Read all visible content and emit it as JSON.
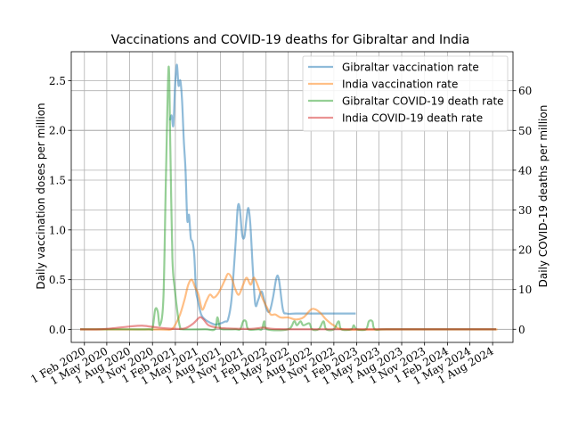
{
  "chart_data": {
    "type": "line",
    "title": "Vaccinations and COVID-19 deaths for Gibraltar and India",
    "ylabel": "Daily vaccination doses per million",
    "y2label": "Daily COVID-19 deaths per million",
    "xlabel": "",
    "xlim": [
      "2019-12-10",
      "2024-10-22"
    ],
    "ylim": [
      -0.13,
      2.79
    ],
    "y2lim": [
      -3.3,
      69.8
    ],
    "grid": true,
    "legend_position": "top-right",
    "x_ticks": [
      "2020-02-01",
      "2020-05-01",
      "2020-08-01",
      "2020-11-01",
      "2021-02-01",
      "2021-05-01",
      "2021-08-01",
      "2021-11-01",
      "2022-02-01",
      "2022-05-01",
      "2022-08-01",
      "2022-11-01",
      "2023-02-01",
      "2023-05-01",
      "2023-08-01",
      "2023-11-01",
      "2024-02-01",
      "2024-05-01",
      "2024-08-01"
    ],
    "x_tick_labels": [
      "1 Feb 2020",
      "1 May 2020",
      "1 Aug 2020",
      "1 Nov 2020",
      "1 Feb 2021",
      "1 May 2021",
      "1 Aug 2021",
      "1 Nov 2021",
      "1 Feb 2022",
      "1 May 2022",
      "1 Aug 2022",
      "1 Nov 2022",
      "1 Feb 2023",
      "1 May 2023",
      "1 Aug 2023",
      "1 Nov 2023",
      "1 Feb 2024",
      "1 May 2024",
      "1 Aug 2024"
    ],
    "y_ticks": [
      0.0,
      0.5,
      1.0,
      1.5,
      2.0,
      2.5
    ],
    "y_tick_labels": [
      "0.0",
      "0.5",
      "1.0",
      "1.5",
      "2.0",
      "2.5"
    ],
    "y2_ticks": [
      0,
      10,
      20,
      30,
      40,
      50,
      60
    ],
    "y2_tick_labels": [
      "0",
      "10",
      "20",
      "30",
      "40",
      "50",
      "60"
    ],
    "series": [
      {
        "name": "Gibraltar vaccination rate",
        "axis": "left",
        "color": "#1f77b4",
        "points": [
          [
            "2021-01-10",
            2.1
          ],
          [
            "2021-01-17",
            2.15
          ],
          [
            "2021-01-24",
            2.05
          ],
          [
            "2021-01-31",
            2.45
          ],
          [
            "2021-02-07",
            2.66
          ],
          [
            "2021-02-14",
            2.45
          ],
          [
            "2021-02-21",
            2.5
          ],
          [
            "2021-02-28",
            2.3
          ],
          [
            "2021-03-07",
            1.9
          ],
          [
            "2021-03-14",
            1.6
          ],
          [
            "2021-03-21",
            1.1
          ],
          [
            "2021-03-28",
            1.15
          ],
          [
            "2021-04-04",
            0.92
          ],
          [
            "2021-04-11",
            0.88
          ],
          [
            "2021-04-18",
            0.75
          ],
          [
            "2021-04-25",
            0.4
          ],
          [
            "2021-05-02",
            0.3
          ],
          [
            "2021-05-16",
            0.15
          ],
          [
            "2021-06-01",
            0.1
          ],
          [
            "2021-06-20",
            0.07
          ],
          [
            "2021-07-10",
            0.05
          ],
          [
            "2021-08-01",
            0.06
          ],
          [
            "2021-08-20",
            0.08
          ],
          [
            "2021-09-01",
            0.1
          ],
          [
            "2021-09-15",
            0.3
          ],
          [
            "2021-10-01",
            0.85
          ],
          [
            "2021-10-10",
            1.22
          ],
          [
            "2021-10-18",
            1.22
          ],
          [
            "2021-10-28",
            0.95
          ],
          [
            "2021-11-06",
            0.93
          ],
          [
            "2021-11-14",
            1.1
          ],
          [
            "2021-11-22",
            1.22
          ],
          [
            "2021-11-30",
            1.05
          ],
          [
            "2021-12-10",
            0.6
          ],
          [
            "2021-12-20",
            0.25
          ],
          [
            "2022-01-01",
            0.3
          ],
          [
            "2022-01-15",
            0.38
          ],
          [
            "2022-02-01",
            0.22
          ],
          [
            "2022-02-15",
            0.18
          ],
          [
            "2022-03-01",
            0.32
          ],
          [
            "2022-03-15",
            0.52
          ],
          [
            "2022-03-25",
            0.5
          ],
          [
            "2022-04-10",
            0.2
          ],
          [
            "2022-04-25",
            0.16
          ],
          [
            "2022-06-01",
            0.16
          ],
          [
            "2022-08-01",
            0.16
          ],
          [
            "2022-10-01",
            0.16
          ],
          [
            "2022-12-01",
            0.16
          ],
          [
            "2023-01-28",
            0.16
          ]
        ]
      },
      {
        "name": "India vaccination rate",
        "axis": "left",
        "color": "#ff7f0e",
        "points": [
          [
            "2020-01-15",
            0.0
          ],
          [
            "2020-06-01",
            0.0
          ],
          [
            "2020-12-01",
            0.0
          ],
          [
            "2021-01-15",
            0.0
          ],
          [
            "2021-02-01",
            0.05
          ],
          [
            "2021-02-20",
            0.15
          ],
          [
            "2021-03-10",
            0.3
          ],
          [
            "2021-03-25",
            0.45
          ],
          [
            "2021-04-08",
            0.5
          ],
          [
            "2021-04-22",
            0.42
          ],
          [
            "2021-05-05",
            0.35
          ],
          [
            "2021-05-20",
            0.2
          ],
          [
            "2021-06-05",
            0.28
          ],
          [
            "2021-06-20",
            0.35
          ],
          [
            "2021-07-05",
            0.32
          ],
          [
            "2021-07-20",
            0.35
          ],
          [
            "2021-08-05",
            0.42
          ],
          [
            "2021-08-20",
            0.5
          ],
          [
            "2021-09-01",
            0.56
          ],
          [
            "2021-09-15",
            0.52
          ],
          [
            "2021-10-01",
            0.4
          ],
          [
            "2021-10-15",
            0.35
          ],
          [
            "2021-11-01",
            0.45
          ],
          [
            "2021-11-15",
            0.52
          ],
          [
            "2021-12-01",
            0.45
          ],
          [
            "2021-12-15",
            0.52
          ],
          [
            "2022-01-05",
            0.4
          ],
          [
            "2022-01-20",
            0.3
          ],
          [
            "2022-02-05",
            0.22
          ],
          [
            "2022-02-20",
            0.15
          ],
          [
            "2022-03-10",
            0.15
          ],
          [
            "2022-04-01",
            0.12
          ],
          [
            "2022-05-01",
            0.12
          ],
          [
            "2022-06-01",
            0.1
          ],
          [
            "2022-07-01",
            0.12
          ],
          [
            "2022-08-01",
            0.2
          ],
          [
            "2022-08-20",
            0.2
          ],
          [
            "2022-09-10",
            0.16
          ],
          [
            "2022-10-01",
            0.1
          ],
          [
            "2022-11-01",
            0.04
          ],
          [
            "2022-12-15",
            0.0
          ],
          [
            "2023-06-01",
            0.0
          ],
          [
            "2024-01-01",
            0.0
          ],
          [
            "2024-08-20",
            0.0
          ]
        ]
      },
      {
        "name": "Gibraltar COVID-19 death rate",
        "axis": "right",
        "color": "#2ca02c",
        "points": [
          [
            "2020-01-15",
            0
          ],
          [
            "2020-06-01",
            0
          ],
          [
            "2020-10-15",
            0
          ],
          [
            "2020-11-01",
            0.3
          ],
          [
            "2020-11-12",
            5
          ],
          [
            "2020-11-22",
            4.5
          ],
          [
            "2020-12-01",
            1
          ],
          [
            "2020-12-15",
            8
          ],
          [
            "2020-12-25",
            38
          ],
          [
            "2021-01-05",
            66
          ],
          [
            "2021-01-12",
            45
          ],
          [
            "2021-01-20",
            18
          ],
          [
            "2021-01-30",
            10
          ],
          [
            "2021-02-10",
            4
          ],
          [
            "2021-02-20",
            0.5
          ],
          [
            "2021-03-01",
            0
          ],
          [
            "2021-06-01",
            0
          ],
          [
            "2021-07-10",
            0
          ],
          [
            "2021-07-20",
            3
          ],
          [
            "2021-07-30",
            0.5
          ],
          [
            "2021-08-10",
            0
          ],
          [
            "2021-10-01",
            0
          ],
          [
            "2021-10-20",
            0
          ],
          [
            "2021-11-01",
            2
          ],
          [
            "2021-11-12",
            2
          ],
          [
            "2021-11-22",
            0
          ],
          [
            "2022-01-01",
            0
          ],
          [
            "2022-01-15",
            0
          ],
          [
            "2022-01-25",
            2
          ],
          [
            "2022-02-05",
            0
          ],
          [
            "2022-05-01",
            0
          ],
          [
            "2022-05-25",
            2
          ],
          [
            "2022-06-05",
            1
          ],
          [
            "2022-06-20",
            2
          ],
          [
            "2022-07-01",
            1
          ],
          [
            "2022-07-25",
            1.5
          ],
          [
            "2022-08-05",
            0
          ],
          [
            "2022-09-01",
            0
          ],
          [
            "2022-09-20",
            2
          ],
          [
            "2022-10-01",
            0
          ],
          [
            "2022-11-01",
            0
          ],
          [
            "2022-11-20",
            2
          ],
          [
            "2022-12-01",
            0
          ],
          [
            "2023-01-10",
            0
          ],
          [
            "2023-01-20",
            1
          ],
          [
            "2023-02-01",
            0
          ],
          [
            "2023-03-10",
            0
          ],
          [
            "2023-03-22",
            2
          ],
          [
            "2023-04-05",
            2
          ],
          [
            "2023-04-15",
            0
          ],
          [
            "2023-06-01",
            0
          ],
          [
            "2024-01-01",
            0
          ],
          [
            "2024-08-15",
            0
          ]
        ]
      },
      {
        "name": "India COVID-19 death rate",
        "axis": "right",
        "color": "#d62728",
        "points": [
          [
            "2020-01-15",
            0
          ],
          [
            "2020-04-01",
            0
          ],
          [
            "2020-06-01",
            0.3
          ],
          [
            "2020-08-01",
            0.7
          ],
          [
            "2020-09-20",
            0.9
          ],
          [
            "2020-11-01",
            0.6
          ],
          [
            "2021-01-01",
            0.2
          ],
          [
            "2021-02-15",
            0.1
          ],
          [
            "2021-03-15",
            0.3
          ],
          [
            "2021-04-15",
            1.5
          ],
          [
            "2021-05-10",
            3
          ],
          [
            "2021-05-25",
            2.5
          ],
          [
            "2021-06-15",
            1
          ],
          [
            "2021-07-20",
            0.4
          ],
          [
            "2021-09-01",
            0.2
          ],
          [
            "2021-12-01",
            0.1
          ],
          [
            "2022-01-20",
            0.4
          ],
          [
            "2022-03-01",
            0.1
          ],
          [
            "2022-06-01",
            0
          ],
          [
            "2023-01-01",
            0
          ],
          [
            "2024-01-01",
            0
          ],
          [
            "2024-08-15",
            0
          ]
        ]
      }
    ]
  }
}
